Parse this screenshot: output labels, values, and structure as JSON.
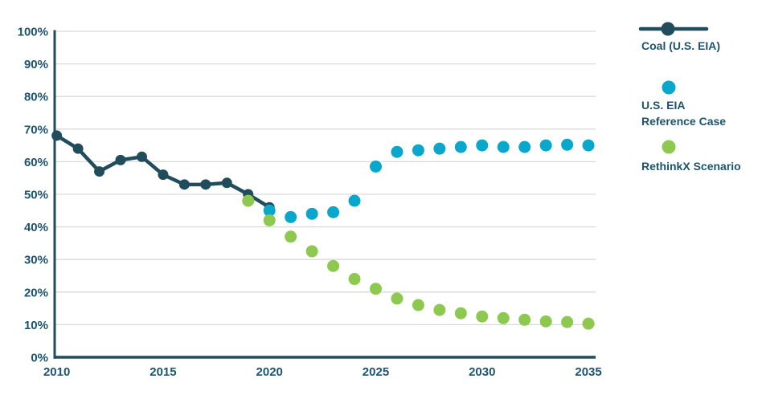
{
  "colors": {
    "coal": "#204C5C",
    "eia_reference": "#09A7CC",
    "rethinkx": "#8DC94E",
    "grid": "#D9DADB",
    "axis": "#204C5C",
    "text": "#1C536F"
  },
  "legend": {
    "coal": {
      "label": "Coal (U.S. EIA)"
    },
    "eia_ref": {
      "line1": "U.S. EIA",
      "line2": "Reference Case"
    },
    "rethinkx": {
      "label": "RethinkX Scenario"
    }
  },
  "chart_data": {
    "type": "scatter",
    "title": "",
    "xlabel": "",
    "ylabel": "",
    "ylim": [
      0,
      100
    ],
    "xlim": [
      2009.9,
      2035.3
    ],
    "grid": "horizontal",
    "legend_position": "right",
    "y_ticks": [
      {
        "v": 0,
        "label": "0%"
      },
      {
        "v": 10,
        "label": "10%"
      },
      {
        "v": 20,
        "label": "20%"
      },
      {
        "v": 30,
        "label": "30%"
      },
      {
        "v": 40,
        "label": "40%"
      },
      {
        "v": 50,
        "label": "50%"
      },
      {
        "v": 60,
        "label": "60%"
      },
      {
        "v": 70,
        "label": "70%"
      },
      {
        "v": 80,
        "label": "80%"
      },
      {
        "v": 90,
        "label": "90%"
      },
      {
        "v": 100,
        "label": "100%"
      }
    ],
    "x_ticks": [
      {
        "v": 2010,
        "label": "2010"
      },
      {
        "v": 2015,
        "label": "2015"
      },
      {
        "v": 2020,
        "label": "2020"
      },
      {
        "v": 2025,
        "label": "2025"
      },
      {
        "v": 2030,
        "label": "2030"
      },
      {
        "v": 2035,
        "label": "2035"
      }
    ],
    "series": [
      {
        "name": "Coal (U.S. EIA)",
        "style": "line+dot",
        "color": "#204C5C",
        "dot_radius": 6.5,
        "line_width": 4.5,
        "start_year": 2010,
        "values": [
          68,
          64,
          57,
          60.5,
          61.5,
          56,
          53,
          53,
          53.5,
          50,
          46
        ]
      },
      {
        "name": "U.S. EIA Reference Case",
        "style": "dot",
        "color": "#09A7CC",
        "dot_radius": 7.5,
        "start_year": 2020,
        "values": [
          45,
          43,
          44,
          44.5,
          48,
          58.5,
          63,
          63.5,
          64,
          64.5,
          65,
          64.5,
          64.5,
          65,
          65.2,
          65
        ]
      },
      {
        "name": "RethinkX Scenario",
        "style": "dot",
        "color": "#8DC94E",
        "dot_radius": 7.5,
        "start_year": 2019,
        "values": [
          48,
          42,
          37,
          32.5,
          28,
          24,
          21,
          18,
          16,
          14.5,
          13.5,
          12.5,
          12,
          11.5,
          11,
          10.8,
          10.3
        ]
      }
    ]
  }
}
